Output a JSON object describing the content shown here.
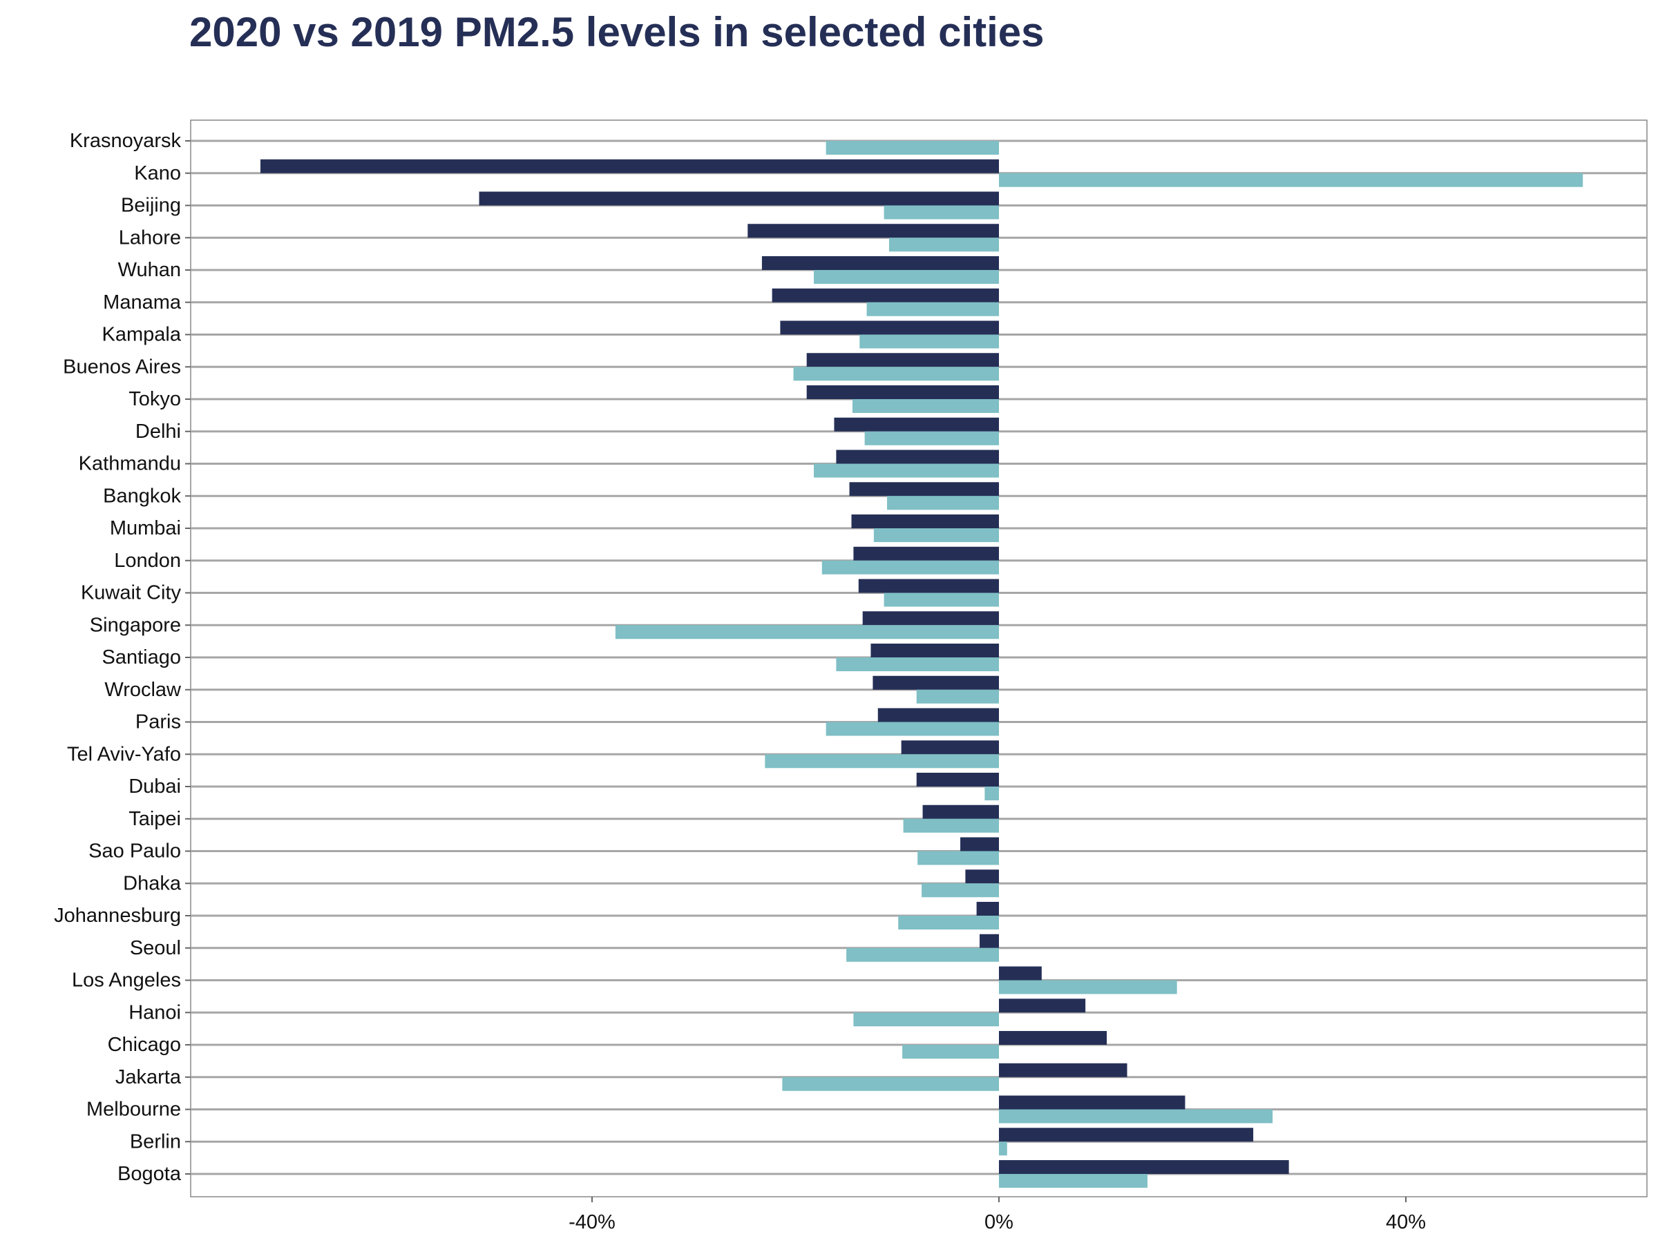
{
  "chart_data": {
    "type": "bar",
    "orientation": "horizontal",
    "title": "2020 vs 2019 PM2.5 levels in selected cities",
    "xlabel": "",
    "ylabel": "",
    "xlim": [
      -79,
      64
    ],
    "xticks": [
      -40,
      0,
      40
    ],
    "xtick_labels": [
      "-40%",
      "0%",
      "40%"
    ],
    "grid": "horizontal",
    "legend": "none",
    "categories": [
      "Krasnoyarsk",
      "Kano",
      "Beijing",
      "Lahore",
      "Wuhan",
      "Manama",
      "Kampala",
      "Buenos Aires",
      "Tokyo",
      "Delhi",
      "Kathmandu",
      "Bangkok",
      "Mumbai",
      "London",
      "Kuwait City",
      "Singapore",
      "Santiago",
      "Wroclaw",
      "Paris",
      "Tel Aviv-Yafo",
      "Dubai",
      "Taipei",
      "Sao Paulo",
      "Dhaka",
      "Johannesburg",
      "Seoul",
      "Los Angeles",
      "Hanoi",
      "Chicago",
      "Jakarta",
      "Melbourne",
      "Berlin",
      "Bogota"
    ],
    "series": [
      {
        "color": "#252f56",
        "values": [
          null,
          -72.6,
          -51.1,
          -24.7,
          -23.3,
          -22.3,
          -21.5,
          -18.9,
          -18.9,
          -16.2,
          -16.0,
          -14.7,
          -14.5,
          -14.3,
          -13.8,
          -13.4,
          -12.6,
          -12.4,
          -11.9,
          -9.6,
          -8.1,
          -7.5,
          -3.8,
          -3.3,
          -2.2,
          -1.9,
          4.2,
          8.5,
          10.6,
          12.6,
          18.3,
          25.0,
          28.5
        ]
      },
      {
        "color": "#7fbfc5",
        "values": [
          -17.0,
          57.4,
          -11.3,
          -10.8,
          -18.2,
          -13.0,
          -13.7,
          -20.2,
          -14.4,
          -13.2,
          -18.2,
          -11.0,
          -12.3,
          -17.4,
          -11.3,
          -37.7,
          -16.0,
          -8.1,
          -17.0,
          -23.0,
          -1.4,
          -9.4,
          -8.0,
          -7.6,
          -9.9,
          -15.0,
          17.5,
          -14.3,
          -9.5,
          -21.3,
          26.9,
          0.8,
          14.6
        ]
      }
    ]
  },
  "colors": {
    "title": "#252f56",
    "grid": "#a6a6a6",
    "axis": "#666666"
  }
}
